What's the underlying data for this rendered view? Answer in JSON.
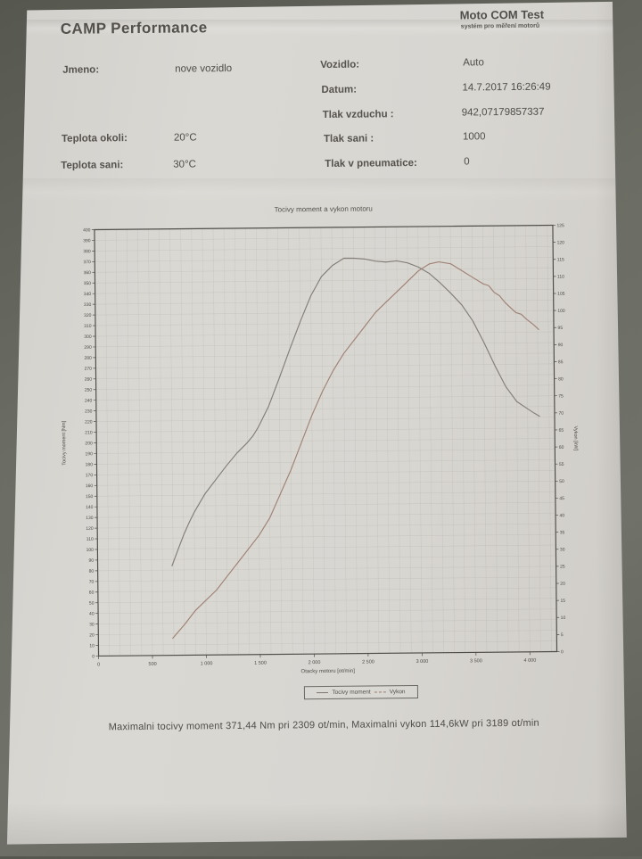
{
  "header": {
    "title": "CAMP Performance",
    "brand": "Moto COM Test",
    "brand_subtitle": "systém pro měření motorů"
  },
  "info": {
    "left": [
      {
        "label": "Jmeno:",
        "value": "nove vozidlo"
      },
      {
        "label": "Teplota okoli:",
        "value": "20°C"
      },
      {
        "label": "Teplota sani:",
        "value": "30°C"
      }
    ],
    "right": [
      {
        "label": "Vozidlo:",
        "value": "Auto"
      },
      {
        "label": "Datum:",
        "value": "14.7.2017 16:26:49"
      },
      {
        "label": "Tlak vzduchu :",
        "value": "942,07179857337"
      },
      {
        "label": "Tlak sani :",
        "value": "1000"
      },
      {
        "label": "Tlak v pneumatice:",
        "value": "0"
      }
    ]
  },
  "chart_data": {
    "type": "line",
    "title": "Tocivy moment a vykon motoru",
    "xlabel": "Otacky motoru [ot/min]",
    "ylabel_left": "Tocivy moment [Nm]",
    "ylabel_right": "Vykon [kW]",
    "x_range": [
      0,
      4250
    ],
    "y_left_range": [
      0,
      400
    ],
    "y_right_range": [
      0,
      125
    ],
    "grid": true,
    "x_tick_values": [
      0,
      500,
      1000,
      1500,
      2000,
      2500,
      3000,
      3500,
      4000
    ],
    "x_ticks": [
      "0",
      "500",
      "1 000",
      "1 500",
      "2 000",
      "2 500",
      "3 000",
      "3 500",
      "4 000"
    ],
    "y_left_ticks": [
      400,
      390,
      380,
      370,
      360,
      350,
      340,
      330,
      320,
      310,
      300,
      290,
      280,
      270,
      260,
      250,
      240,
      230,
      220,
      210,
      200,
      190,
      180,
      170,
      160,
      150,
      140,
      130,
      120,
      110,
      100,
      90,
      80,
      70,
      60,
      50,
      40,
      30,
      20,
      10,
      0
    ],
    "y_right_ticks": [
      125,
      120,
      115,
      110,
      105,
      100,
      95,
      90,
      85,
      80,
      75,
      70,
      65,
      60,
      55,
      50,
      45,
      40,
      35,
      30,
      25,
      20,
      15,
      10,
      5,
      0
    ],
    "legend": [
      {
        "label": "Tocivy moment",
        "color": "#7d7672",
        "style": "solid"
      },
      {
        "label": "Vykon",
        "color": "#9b7b6e",
        "style": "dashed"
      }
    ],
    "series": [
      {
        "id": "torque",
        "name": "Tocivy moment",
        "axis": "left",
        "unit": "Nm",
        "color": "#7d7672",
        "points": [
          [
            690,
            84
          ],
          [
            750,
            100
          ],
          [
            800,
            113
          ],
          [
            850,
            124
          ],
          [
            900,
            134
          ],
          [
            1000,
            151
          ],
          [
            1100,
            164
          ],
          [
            1200,
            177
          ],
          [
            1300,
            189
          ],
          [
            1400,
            199
          ],
          [
            1450,
            205
          ],
          [
            1500,
            213
          ],
          [
            1600,
            233
          ],
          [
            1700,
            259
          ],
          [
            1800,
            286
          ],
          [
            1900,
            312
          ],
          [
            2000,
            336
          ],
          [
            2100,
            354
          ],
          [
            2200,
            364
          ],
          [
            2309,
            371
          ],
          [
            2400,
            371
          ],
          [
            2500,
            370
          ],
          [
            2600,
            368
          ],
          [
            2700,
            367
          ],
          [
            2800,
            368
          ],
          [
            2900,
            366
          ],
          [
            3000,
            362
          ],
          [
            3100,
            356
          ],
          [
            3200,
            347
          ],
          [
            3300,
            337
          ],
          [
            3400,
            326
          ],
          [
            3500,
            311
          ],
          [
            3600,
            291
          ],
          [
            3700,
            269
          ],
          [
            3800,
            249
          ],
          [
            3900,
            235
          ],
          [
            4000,
            228
          ],
          [
            4060,
            224
          ],
          [
            4110,
            221
          ]
        ]
      },
      {
        "id": "power",
        "name": "Vykon",
        "axis": "right",
        "unit": "kW",
        "color": "#9b7b6e",
        "points": [
          [
            690,
            5
          ],
          [
            800,
            9
          ],
          [
            900,
            13
          ],
          [
            1000,
            16
          ],
          [
            1100,
            19
          ],
          [
            1200,
            23
          ],
          [
            1300,
            27
          ],
          [
            1400,
            31
          ],
          [
            1500,
            35
          ],
          [
            1600,
            40
          ],
          [
            1700,
            47
          ],
          [
            1800,
            54
          ],
          [
            1900,
            62
          ],
          [
            2000,
            70
          ],
          [
            2100,
            77
          ],
          [
            2200,
            83
          ],
          [
            2300,
            88
          ],
          [
            2400,
            92
          ],
          [
            2500,
            96
          ],
          [
            2600,
            100
          ],
          [
            2700,
            103
          ],
          [
            2800,
            106
          ],
          [
            2900,
            109
          ],
          [
            3000,
            112
          ],
          [
            3100,
            114
          ],
          [
            3189,
            114.6
          ],
          [
            3300,
            114
          ],
          [
            3400,
            112
          ],
          [
            3500,
            110
          ],
          [
            3600,
            108
          ],
          [
            3650,
            107.5
          ],
          [
            3700,
            105.5
          ],
          [
            3750,
            104.5
          ],
          [
            3800,
            102.5
          ],
          [
            3850,
            101
          ],
          [
            3900,
            99.5
          ],
          [
            3950,
            99
          ],
          [
            4000,
            97.5
          ],
          [
            4060,
            96
          ],
          [
            4110,
            94.5
          ]
        ]
      }
    ],
    "max_torque": {
      "value_nm": "371,44",
      "rpm": 2309
    },
    "max_power": {
      "value_kw": "114,6",
      "rpm": 3189
    }
  },
  "footer": {
    "summary": "Maximalni tocivy moment 371,44 Nm pri 2309 ot/min,  Maximalni vykon 114,6kW pri 3189 ot/min"
  }
}
